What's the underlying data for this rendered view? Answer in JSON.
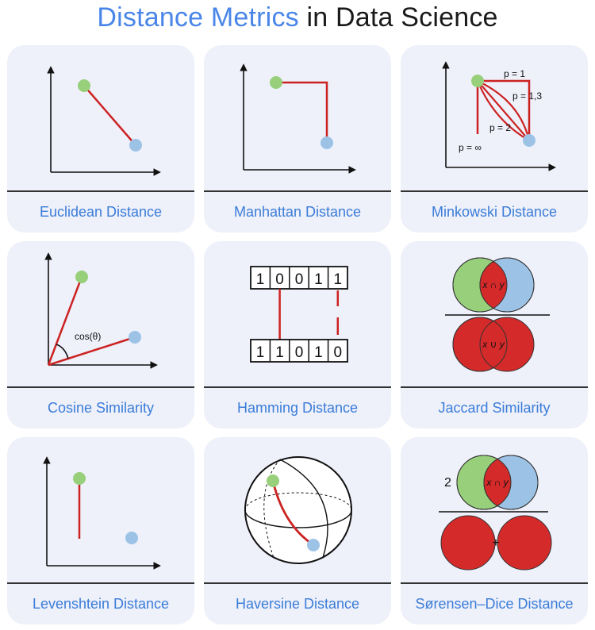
{
  "title": {
    "part1": "Distance Metrics",
    "part2": " in Data Science"
  },
  "colors": {
    "accent": "#4a86e8",
    "line": "#cc2222",
    "green_point": "#97cf7a",
    "blue_point": "#9cc3e6",
    "card": "#eef0fa"
  },
  "cards": [
    {
      "label": "Euclidean Distance"
    },
    {
      "label": "Manhattan Distance"
    },
    {
      "label": "Minkowski Distance",
      "annotations": [
        "p = 1",
        "p = 1,3",
        "p = 2",
        "p = ∞"
      ]
    },
    {
      "label": "Cosine Similarity",
      "annotation": "cos(θ)"
    },
    {
      "label": "Hamming Distance",
      "top_bits": [
        "1",
        "0",
        "0",
        "1",
        "1"
      ],
      "bottom_bits": [
        "1",
        "1",
        "0",
        "1",
        "0"
      ]
    },
    {
      "label": "Jaccard Similarity",
      "numerator": "x ∩ y",
      "denominator": "x ∪ y"
    },
    {
      "label": "Levenshtein Distance"
    },
    {
      "label": "Haversine Distance"
    },
    {
      "label": "Sørensen–Dice Distance",
      "coefficient": "2",
      "numerator": "x ∩ y",
      "plus": "+"
    }
  ]
}
